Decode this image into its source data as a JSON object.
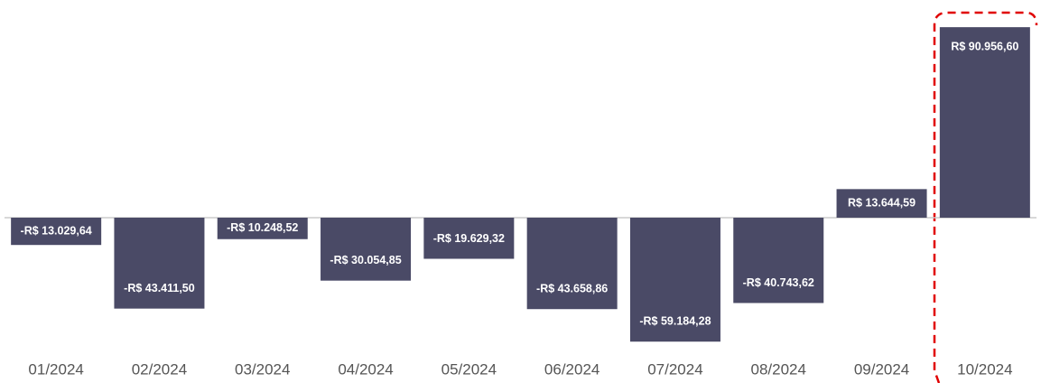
{
  "chart_data": {
    "type": "bar",
    "categories": [
      "01/2024",
      "02/2024",
      "03/2024",
      "04/2024",
      "05/2024",
      "06/2024",
      "07/2024",
      "08/2024",
      "09/2024",
      "10/2024"
    ],
    "values": [
      -13029.64,
      -43411.5,
      -10248.52,
      -30054.85,
      -19629.32,
      -43658.86,
      -59184.28,
      -40743.62,
      13644.59,
      90956.6
    ],
    "value_labels": [
      "-R$ 13.029,64",
      "-R$ 43.411,50",
      "-R$ 10.248,52",
      "-R$ 30.054,85",
      "-R$ 19.629,32",
      "-R$ 43.658,86",
      "-R$ 59.184,28",
      "-R$ 40.743,62",
      "R$ 13.644,59",
      "R$ 90.956,60"
    ],
    "color": "#4a4a66",
    "ylim": [
      -65000,
      91000
    ]
  }
}
